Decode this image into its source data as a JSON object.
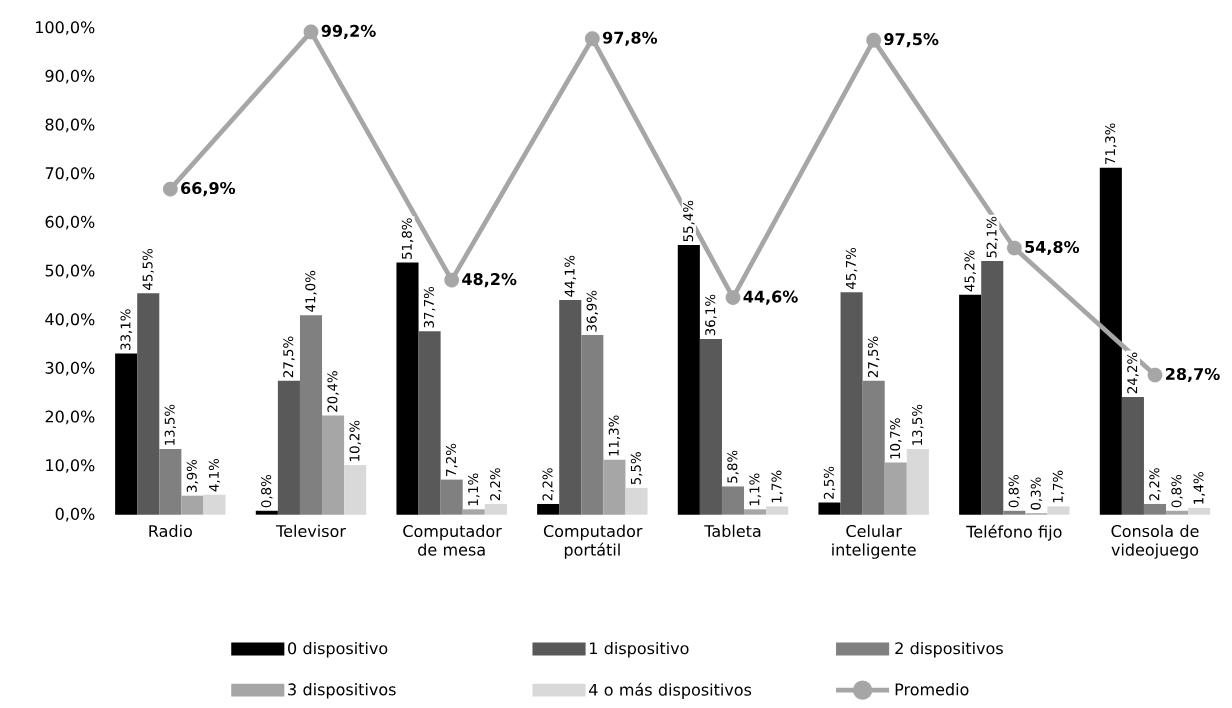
{
  "chart_data": {
    "type": "bar",
    "categories": [
      "Radio",
      "Televisor",
      "Computador de mesa",
      "Computador portátil",
      "Tableta",
      "Celular inteligente",
      "Teléfono fijo",
      "Consola de videojuego"
    ],
    "series": [
      {
        "name": "0 dispositivo",
        "color": "#000000",
        "values": [
          33.1,
          0.8,
          51.8,
          2.2,
          55.4,
          2.5,
          45.2,
          71.3
        ],
        "value_labels": [
          "33,1%",
          "0,8%",
          "51,8%",
          "2,2%",
          "55,4%",
          "2,5%",
          "45,2%",
          "71,3%"
        ]
      },
      {
        "name": "1 dispositivo",
        "color": "#595959",
        "values": [
          45.5,
          27.5,
          37.7,
          44.1,
          36.1,
          45.7,
          52.1,
          24.2
        ],
        "value_labels": [
          "45,5%",
          "27,5%",
          "37,7%",
          "44,1%",
          "36,1%",
          "45,7%",
          "52,1%",
          "24,2%"
        ]
      },
      {
        "name": "2 dispositivos",
        "color": "#808080",
        "values": [
          13.5,
          41.0,
          7.2,
          36.9,
          5.8,
          27.5,
          0.8,
          2.2
        ],
        "value_labels": [
          "13,5%",
          "41,0%",
          "7,2%",
          "36,9%",
          "5,8%",
          "27,5%",
          "0,8%",
          "2,2%"
        ]
      },
      {
        "name": "3 dispositivos",
        "color": "#a6a6a6",
        "values": [
          3.9,
          20.4,
          1.1,
          11.3,
          1.1,
          10.7,
          0.3,
          0.8
        ],
        "value_labels": [
          "3,9%",
          "20,4%",
          "1,1%",
          "11,3%",
          "1,1%",
          "10,7%",
          "0,3%",
          "0,8%"
        ]
      },
      {
        "name": "4 o más dispositivos",
        "color": "#d9d9d9",
        "values": [
          4.1,
          10.2,
          2.2,
          5.5,
          1.7,
          13.5,
          1.7,
          1.4
        ],
        "value_labels": [
          "4,1%",
          "10,2%",
          "2,2%",
          "5,5%",
          "1,7%",
          "13,5%",
          "1,7%",
          "1,4%"
        ]
      },
      {
        "name": "Promedio",
        "type": "line",
        "marker": "circle",
        "color": "#a6a6a6",
        "values": [
          66.9,
          99.2,
          48.2,
          97.8,
          44.6,
          97.5,
          54.8,
          28.7
        ],
        "value_labels": [
          "66,9%",
          "99,2%",
          "48,2%",
          "97,8%",
          "44,6%",
          "97,5%",
          "54,8%",
          "28,7%"
        ]
      }
    ],
    "ylim": [
      0,
      100
    ],
    "yticks": [
      {
        "value": 0,
        "label": "0,0%"
      },
      {
        "value": 10,
        "label": "10,0%"
      },
      {
        "value": 20,
        "label": "20,0%"
      },
      {
        "value": 30,
        "label": "30,0%"
      },
      {
        "value": 40,
        "label": "40,0%"
      },
      {
        "value": 50,
        "label": "50,0%"
      },
      {
        "value": 60,
        "label": "60,0%"
      },
      {
        "value": 70,
        "label": "70,0%"
      },
      {
        "value": 80,
        "label": "80,0%"
      },
      {
        "value": 90,
        "label": "90,0%"
      },
      {
        "value": 100,
        "label": "100,0%"
      }
    ],
    "legend": "bottom"
  }
}
